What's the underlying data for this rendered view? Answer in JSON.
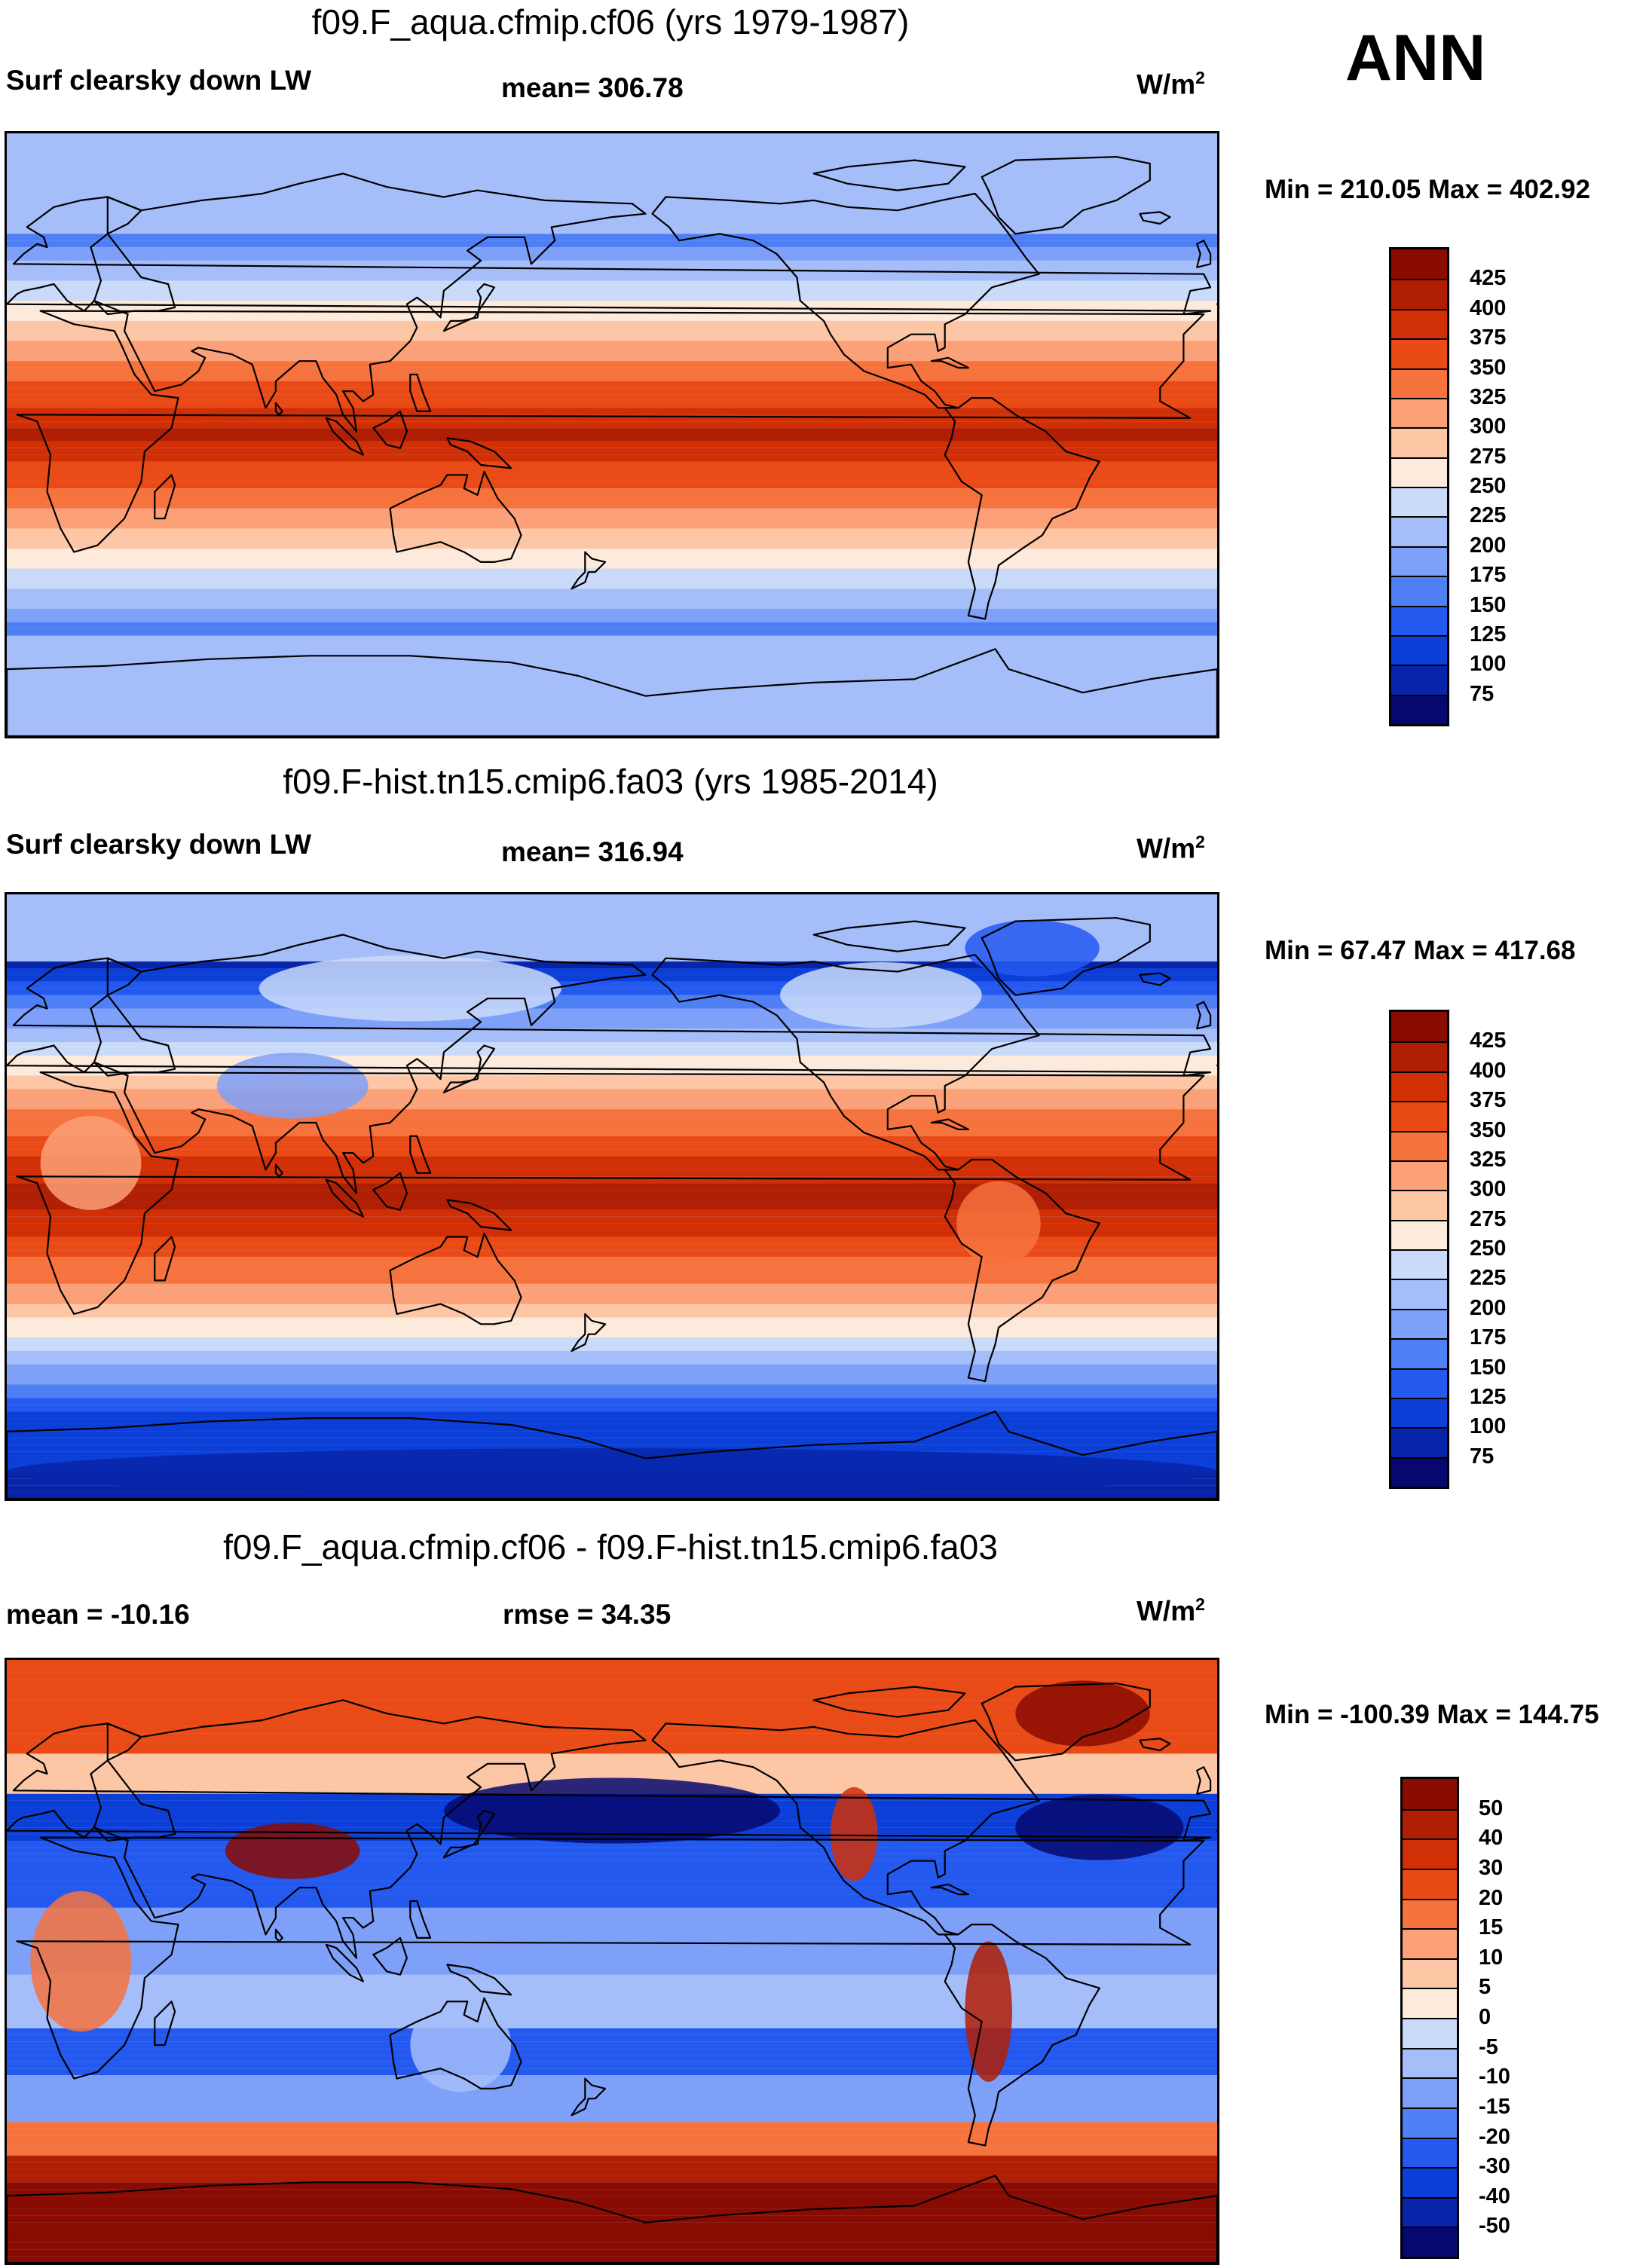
{
  "season": "ANN",
  "colors": {
    "abs_scale": [
      "#06086f",
      "#0824a8",
      "#0b3fd8",
      "#2459f0",
      "#4f7ff5",
      "#7ea0f8",
      "#a5bdf9",
      "#cadaf9",
      "#fdeadb",
      "#fdc6a5",
      "#fca077",
      "#f7733e",
      "#ea4a16",
      "#d12f06",
      "#b01f04",
      "#8a0b02"
    ],
    "diff_scale": [
      "#06086f",
      "#0824a8",
      "#0b3fd8",
      "#2459f0",
      "#4f7ff5",
      "#7ea0f8",
      "#a5bdf9",
      "#cadaf9",
      "#fdeadb",
      "#fdc6a5",
      "#fca077",
      "#f7733e",
      "#ea4a16",
      "#d12f06",
      "#b01f04",
      "#8a0b02"
    ]
  },
  "panels": [
    {
      "title": "f09.F_aqua.cfmip.cf06 (yrs 1979-1987)",
      "left_label": "Surf clearsky down LW",
      "center_label": "mean= 306.78",
      "units_base": "W/m",
      "units_exp": "2",
      "minmax": "Min = 210.05 Max = 402.92",
      "ticks": [
        "425",
        "400",
        "375",
        "350",
        "325",
        "300",
        "275",
        "250",
        "225",
        "200",
        "175",
        "150",
        "125",
        "100",
        "75"
      ]
    },
    {
      "title": "f09.F-hist.tn15.cmip6.fa03 (yrs 1985-2014)",
      "left_label": "Surf clearsky down LW",
      "center_label": "mean= 316.94",
      "units_base": "W/m",
      "units_exp": "2",
      "minmax": "Min =  67.47 Max = 417.68",
      "ticks": [
        "425",
        "400",
        "375",
        "350",
        "325",
        "300",
        "275",
        "250",
        "225",
        "200",
        "175",
        "150",
        "125",
        "100",
        "75"
      ]
    },
    {
      "title": "f09.F_aqua.cfmip.cf06 - f09.F-hist.tn15.cmip6.fa03",
      "left_label": "mean = -10.16",
      "center_label": "rmse =  34.35",
      "units_base": "W/m",
      "units_exp": "2",
      "minmax": "Min = -100.39 Max = 144.75",
      "ticks": [
        "50",
        "40",
        "30",
        "20",
        "15",
        "10",
        "5",
        "0",
        "-5",
        "-10",
        "-15",
        "-20",
        "-30",
        "-40",
        "-50"
      ]
    }
  ],
  "chart_data": [
    {
      "type": "heatmap",
      "title": "f09.F_aqua.cfmip.cf06 (yrs 1979-1987)",
      "variable": "Surf clearsky down LW",
      "units": "W/m2",
      "mean": 306.78,
      "min": 210.05,
      "max": 402.92,
      "levels": [
        75,
        100,
        125,
        150,
        175,
        200,
        225,
        250,
        275,
        300,
        325,
        350,
        375,
        400,
        425
      ]
    },
    {
      "type": "heatmap",
      "title": "f09.F-hist.tn15.cmip6.fa03 (yrs 1985-2014)",
      "variable": "Surf clearsky down LW",
      "units": "W/m2",
      "mean": 316.94,
      "min": 67.47,
      "max": 417.68,
      "levels": [
        75,
        100,
        125,
        150,
        175,
        200,
        225,
        250,
        275,
        300,
        325,
        350,
        375,
        400,
        425
      ]
    },
    {
      "type": "heatmap",
      "title": "f09.F_aqua.cfmip.cf06 - f09.F-hist.tn15.cmip6.fa03",
      "units": "W/m2",
      "mean": -10.16,
      "rmse": 34.35,
      "min": -100.39,
      "max": 144.75,
      "levels": [
        -50,
        -40,
        -30,
        -20,
        -15,
        -10,
        -5,
        0,
        5,
        10,
        15,
        20,
        30,
        40,
        50
      ]
    }
  ]
}
